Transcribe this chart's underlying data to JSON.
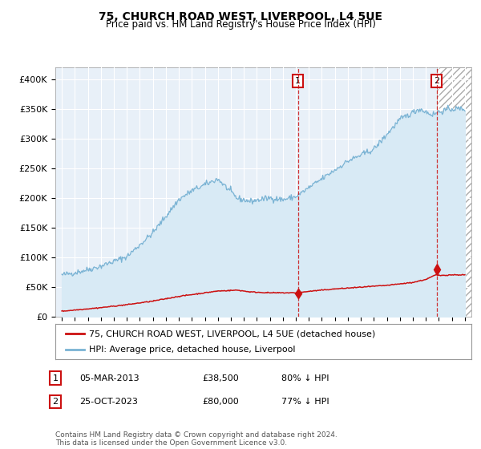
{
  "title1": "75, CHURCH ROAD WEST, LIVERPOOL, L4 5UE",
  "title2": "Price paid vs. HM Land Registry's House Price Index (HPI)",
  "ylabel_ticks": [
    "£0",
    "£50K",
    "£100K",
    "£150K",
    "£200K",
    "£250K",
    "£300K",
    "£350K",
    "£400K"
  ],
  "ytick_vals": [
    0,
    50000,
    100000,
    150000,
    200000,
    250000,
    300000,
    350000,
    400000
  ],
  "ylim": [
    0,
    420000
  ],
  "xlim_start": 1994.5,
  "xlim_end": 2026.5,
  "hpi_color": "#7ab3d4",
  "hpi_fill_color": "#d8eaf5",
  "price_color": "#cc1111",
  "sale1_date": 2013.17,
  "sale1_price": 38500,
  "sale2_date": 2023.82,
  "sale2_price": 80000,
  "legend_label1": "75, CHURCH ROAD WEST, LIVERPOOL, L4 5UE (detached house)",
  "legend_label2": "HPI: Average price, detached house, Liverpool",
  "table_row1": [
    "1",
    "05-MAR-2013",
    "£38,500",
    "80% ↓ HPI"
  ],
  "table_row2": [
    "2",
    "25-OCT-2023",
    "£80,000",
    "77% ↓ HPI"
  ],
  "footer": "Contains HM Land Registry data © Crown copyright and database right 2024.\nThis data is licensed under the Open Government Licence v3.0.",
  "hatch_region_start": 2023.82,
  "background_color": "#ffffff",
  "plot_bg_color": "#e8f0f8"
}
